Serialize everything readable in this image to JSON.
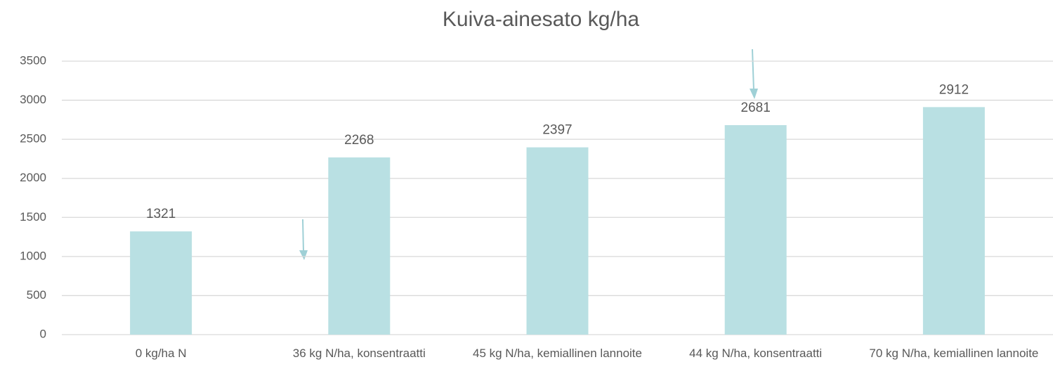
{
  "chart_data": {
    "type": "bar",
    "title": "Kuiva-ainesato kg/ha",
    "categories": [
      "0 kg/ha N",
      "36 kg N/ha, konsentraatti",
      "45 kg N/ha, kemiallinen lannoite",
      "44 kg N/ha, konsentraatti",
      "70 kg N/ha, kemiallinen lannoite"
    ],
    "values": [
      1321,
      2268,
      2397,
      2681,
      2912
    ],
    "color": "#b9e0e3",
    "ylim": [
      0,
      3500
    ],
    "yticks": [
      0,
      500,
      1000,
      1500,
      2000,
      2500,
      3000,
      3500
    ],
    "grid": true
  }
}
